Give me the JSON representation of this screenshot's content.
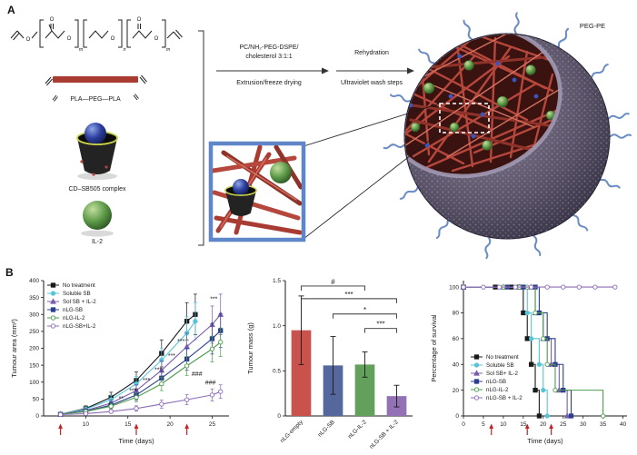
{
  "panel_a": {
    "label": "A",
    "atom_o": "O",
    "subscripts": [
      "m",
      "n",
      "m"
    ],
    "polymer_label": "PLA—PEG—PLA",
    "cd_label": "CD–SB505 complex",
    "il2_label": "IL-2",
    "pegpe_label": "PEG-PE",
    "step1_line1": "PC/NH₂-PEG-DSPE/",
    "step1_line2": "cholesterol 3:1:1",
    "step1_below": "Extrusion/freeze drying",
    "step2_above": "Rehydration",
    "step2_below": "Ultraviolet wash steps"
  },
  "panel_b": {
    "label": "B"
  },
  "chart_data": [
    {
      "type": "line",
      "xlabel": "Time (days)",
      "ylabel": "Tumour area (mm²)",
      "xlim": [
        5,
        27
      ],
      "ylim": [
        0,
        400
      ],
      "xticks": [
        "10",
        "15",
        "20",
        "25"
      ],
      "yticks": [
        "0",
        "50",
        "100",
        "150",
        "200",
        "250",
        "300",
        "350",
        "400"
      ],
      "treatment_arrow_days": [
        7,
        16,
        22
      ],
      "legend_position": "top-left",
      "series": [
        {
          "name": "No treatment",
          "color": "#1a1a1a",
          "marker": "square",
          "fill": true,
          "x": [
            7,
            10,
            13,
            16,
            19,
            22,
            23
          ],
          "y": [
            5,
            22,
            55,
            105,
            185,
            280,
            300
          ],
          "err": [
            3,
            8,
            15,
            25,
            40,
            55,
            60
          ]
        },
        {
          "name": "Soluble SB",
          "color": "#56c5d8",
          "marker": "circle",
          "fill": true,
          "x": [
            7,
            10,
            13,
            16,
            19,
            22,
            23
          ],
          "y": [
            5,
            20,
            48,
            95,
            165,
            245,
            280
          ],
          "err": [
            3,
            7,
            13,
            22,
            35,
            48,
            55
          ]
        },
        {
          "name": "Sol SB + IL-2",
          "color": "#7a5ca8",
          "marker": "triangle",
          "fill": true,
          "x": [
            7,
            10,
            13,
            16,
            19,
            22,
            25,
            26
          ],
          "y": [
            5,
            16,
            38,
            75,
            135,
            205,
            270,
            300
          ],
          "err": [
            3,
            6,
            10,
            18,
            28,
            40,
            55,
            60
          ]
        },
        {
          "name": "nLG-SB",
          "color": "#2d3f8f",
          "marker": "square",
          "fill": true,
          "x": [
            7,
            10,
            13,
            16,
            19,
            22,
            25,
            26
          ],
          "y": [
            5,
            14,
            32,
            62,
            112,
            168,
            228,
            252
          ],
          "err": [
            3,
            5,
            9,
            15,
            22,
            32,
            45,
            50
          ]
        },
        {
          "name": "nLG-IL-2",
          "color": "#4e9a4e",
          "marker": "circle",
          "fill": false,
          "x": [
            7,
            10,
            13,
            16,
            19,
            22,
            25,
            26
          ],
          "y": [
            5,
            13,
            29,
            55,
            95,
            148,
            198,
            218
          ],
          "err": [
            3,
            5,
            8,
            13,
            20,
            28,
            38,
            42
          ]
        },
        {
          "name": "nLG-SB+IL-2",
          "color": "#8d6cb8",
          "marker": "circle",
          "fill": false,
          "x": [
            7,
            10,
            13,
            16,
            19,
            22,
            25,
            26
          ],
          "y": [
            4,
            7,
            13,
            22,
            35,
            48,
            62,
            72
          ],
          "err": [
            2,
            3,
            5,
            8,
            12,
            15,
            18,
            20
          ]
        }
      ],
      "annotations": [
        {
          "text": "***",
          "x": 25.2,
          "y": 340
        },
        {
          "text": "***",
          "x": 21.3,
          "y": 215
        },
        {
          "text": "***",
          "x": 20.2,
          "y": 172
        },
        {
          "text": "***",
          "x": 18.6,
          "y": 130
        },
        {
          "text": "***",
          "x": 17.2,
          "y": 100
        },
        {
          "text": "***",
          "x": 15.6,
          "y": 68
        },
        {
          "text": "**",
          "x": 14.2,
          "y": 45
        },
        {
          "text": "*",
          "x": 12.8,
          "y": 26
        },
        {
          "text": "###",
          "x": 23.2,
          "y": 118
        },
        {
          "text": "###",
          "x": 24.8,
          "y": 92
        }
      ]
    },
    {
      "type": "bar",
      "xlabel": "",
      "ylabel": "Tumour mass (g)",
      "ylim": [
        0,
        1.5
      ],
      "yticks": [
        "0",
        "0.5",
        "1.0",
        "1.5"
      ],
      "categories": [
        "nLG-empty",
        "nLG-SB",
        "nLG-IL-2",
        "nLG-SB + IL-2"
      ],
      "values": [
        0.95,
        0.56,
        0.57,
        0.22
      ],
      "errors": [
        0.38,
        0.32,
        0.14,
        0.12
      ],
      "colors": [
        "#c9534c",
        "#55689e",
        "#63a05c",
        "#9271b5"
      ],
      "brackets": [
        {
          "from": 0,
          "to": 2,
          "label": "#",
          "y": 1.44
        },
        {
          "from": 0,
          "to": 3,
          "label": "***",
          "y": 1.3
        },
        {
          "from": 1,
          "to": 3,
          "label": "*",
          "y": 1.13
        },
        {
          "from": 2,
          "to": 3,
          "label": "***",
          "y": 0.97
        }
      ]
    },
    {
      "type": "step",
      "xlabel": "Time (days)",
      "ylabel": "Percentage of survival",
      "xlim": [
        0,
        41
      ],
      "ylim": [
        0,
        105
      ],
      "xticks": [
        "0",
        "5",
        "10",
        "15",
        "20",
        "25",
        "30",
        "35",
        "40"
      ],
      "yticks": [
        "0",
        "20",
        "40",
        "60",
        "80",
        "100"
      ],
      "treatment_arrow_days": [
        7,
        16,
        22
      ],
      "legend_position": "lower-left",
      "series": [
        {
          "name": "No treatment",
          "color": "#1a1a1a",
          "marker": "square",
          "fill": true,
          "x": [
            0,
            8,
            12,
            14,
            15,
            16,
            17,
            18,
            19
          ],
          "y": [
            100,
            100,
            100,
            100,
            80,
            60,
            40,
            20,
            0
          ]
        },
        {
          "name": "Soluble SB",
          "color": "#56c5d8",
          "marker": "circle",
          "fill": true,
          "x": [
            0,
            9,
            13,
            15,
            16,
            17,
            19,
            20,
            21
          ],
          "y": [
            100,
            100,
            100,
            100,
            80,
            60,
            40,
            20,
            0
          ]
        },
        {
          "name": "Sol SB+ IL-2",
          "color": "#7a5ca8",
          "marker": "triangle",
          "fill": true,
          "x": [
            0,
            10,
            14,
            17,
            18,
            20,
            22,
            24,
            26
          ],
          "y": [
            100,
            100,
            100,
            100,
            80,
            60,
            40,
            20,
            0
          ]
        },
        {
          "name": "nLG-SB",
          "color": "#2d3f8f",
          "marker": "square",
          "fill": true,
          "x": [
            0,
            11,
            15,
            18,
            19,
            21,
            23,
            25,
            27
          ],
          "y": [
            100,
            100,
            100,
            100,
            80,
            60,
            40,
            20,
            0
          ]
        },
        {
          "name": "nLG-IL-2",
          "color": "#4e9a4e",
          "marker": "circle",
          "fill": false,
          "x": [
            0,
            10,
            14,
            16,
            18,
            20,
            21,
            23,
            35
          ],
          "y": [
            100,
            100,
            100,
            100,
            80,
            60,
            40,
            20,
            0
          ]
        },
        {
          "name": "nLG-SB + IL-2",
          "color": "#8d6cb8",
          "marker": "circle",
          "fill": false,
          "x": [
            0,
            5,
            9,
            13,
            17,
            21,
            25,
            29,
            33,
            38
          ],
          "y": [
            100,
            100,
            100,
            100,
            100,
            100,
            100,
            100,
            100,
            100
          ]
        }
      ]
    }
  ]
}
